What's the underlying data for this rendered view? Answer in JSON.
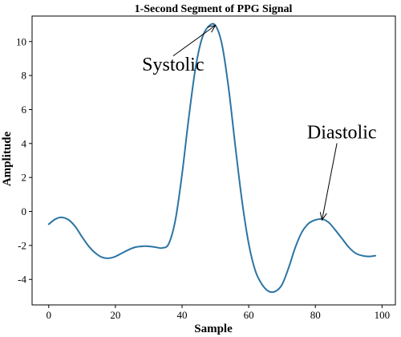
{
  "chart_data": {
    "type": "line",
    "title": "1-Second Segment of PPG Signal",
    "xlabel": "Sample",
    "ylabel": "Amplitude",
    "xlim": [
      -5,
      104
    ],
    "ylim": [
      -5.5,
      11.5
    ],
    "x_ticks": [
      0,
      20,
      40,
      60,
      80,
      100
    ],
    "y_ticks": [
      -4,
      -2,
      0,
      2,
      4,
      6,
      8,
      10
    ],
    "grid": false,
    "legend": "none",
    "colors": {
      "line": "#2c74a4"
    },
    "series": [
      {
        "x": [
          0,
          2,
          4,
          6,
          8,
          10,
          12,
          14,
          16,
          18,
          20,
          22,
          24,
          26,
          28,
          30,
          32,
          34,
          36,
          38,
          40,
          42,
          44,
          46,
          48,
          50,
          52,
          54,
          56,
          58,
          60,
          62,
          64,
          66,
          68,
          70,
          72,
          74,
          76,
          78,
          80,
          82,
          84,
          86,
          88,
          90,
          92,
          94,
          96,
          98
        ],
        "values": [
          -0.75,
          -0.45,
          -0.35,
          -0.5,
          -0.9,
          -1.5,
          -2.05,
          -2.45,
          -2.7,
          -2.75,
          -2.65,
          -2.45,
          -2.25,
          -2.1,
          -2.05,
          -2.05,
          -2.1,
          -2.15,
          -1.9,
          -0.5,
          2.2,
          5.5,
          8.4,
          10.2,
          10.9,
          10.95,
          9.8,
          7.2,
          3.8,
          0.6,
          -1.9,
          -3.5,
          -4.3,
          -4.7,
          -4.7,
          -4.3,
          -3.3,
          -2.1,
          -1.2,
          -0.7,
          -0.5,
          -0.45,
          -0.65,
          -1.1,
          -1.6,
          -2.1,
          -2.45,
          -2.6,
          -2.65,
          -2.6
        ]
      }
    ],
    "annotations": [
      {
        "text": "Systolic",
        "x": 28,
        "y": 8.3,
        "target_x": 50,
        "target_y": 10.95
      },
      {
        "text": "Diastolic",
        "x": 77.5,
        "y": 4.3,
        "target_x": 82,
        "target_y": -0.5
      }
    ]
  }
}
